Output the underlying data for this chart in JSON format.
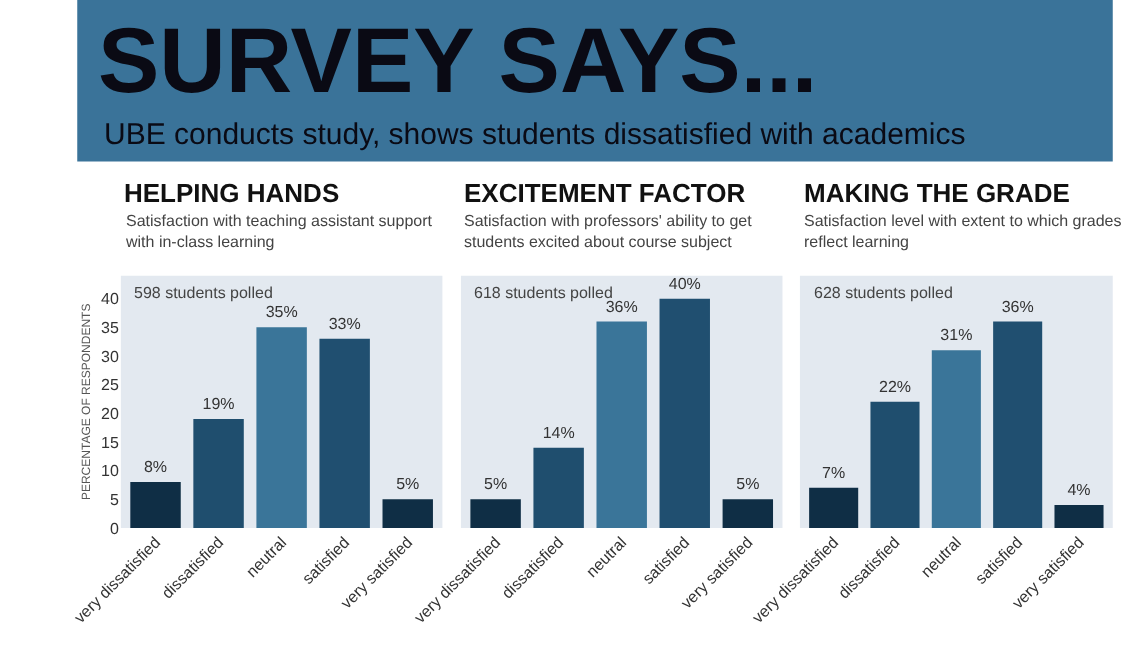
{
  "chart_data": [
    {
      "type": "bar",
      "title": "HELPING HANDS",
      "subtitle": "Satisfaction with teaching assistant support with in-class learning",
      "ylabel": "PERCENTAGE OF RESPONDENTS",
      "annotations": [
        "SURVEY SAYS...",
        "UBE conducts study, shows students dissatisfied with academics",
        "598 students polled"
      ],
      "categories": [
        "very dissatisfied",
        "dissatisfied",
        "neutral",
        "satisfied",
        "very satisfied"
      ],
      "values": [
        8,
        19,
        35,
        33,
        5
      ],
      "value_labels": [
        "8%",
        "19%",
        "35%",
        "33%",
        "5%"
      ],
      "colors": [
        "#0f2e45",
        "#1f4e6e",
        "#3a7599",
        "#204f70",
        "#0f2e45"
      ],
      "ylim": [
        0,
        44
      ],
      "yticks": [
        0,
        5,
        10,
        15,
        20,
        25,
        30,
        35,
        40
      ],
      "grid": false,
      "legend": false
    },
    {
      "type": "bar",
      "title": "EXCITEMENT FACTOR",
      "subtitle": "Satisfaction with professors' ability to get students excited about course subject",
      "annotations": [
        "618 students polled"
      ],
      "categories": [
        "very dissatisfied",
        "dissatisfied",
        "neutral",
        "satisfied",
        "very satisfied"
      ],
      "values": [
        5,
        14,
        36,
        40,
        5
      ],
      "value_labels": [
        "5%",
        "14%",
        "36%",
        "40%",
        "5%"
      ],
      "colors": [
        "#0f2e45",
        "#1f4e6e",
        "#3a7599",
        "#204f70",
        "#0f2e45"
      ],
      "ylim": [
        0,
        44
      ],
      "yticks": [
        0,
        5,
        10,
        15,
        20,
        25,
        30,
        35,
        40
      ],
      "tick_labels": "x",
      "grid": false,
      "legend": false
    },
    {
      "type": "bar",
      "title": "MAKING THE GRADE",
      "subtitle": "Satisfaction level with extent to which grades reflect learning",
      "annotations": [
        "628 students polled"
      ],
      "categories": [
        "very dissatisfied",
        "dissatisfied",
        "neutral",
        "satisfied",
        "very satisfied"
      ],
      "values": [
        7,
        22,
        31,
        36,
        4
      ],
      "value_labels": [
        "7%",
        "22%",
        "31%",
        "36%",
        "4%"
      ],
      "colors": [
        "#0f2e45",
        "#1f4e6e",
        "#3a7599",
        "#204f70",
        "#0f2e45"
      ],
      "ylim": [
        0,
        44
      ],
      "yticks": [
        0,
        5,
        10,
        15,
        20,
        25,
        30,
        35,
        40
      ],
      "tick_labels": "x",
      "grid": false,
      "legend": false
    }
  ]
}
